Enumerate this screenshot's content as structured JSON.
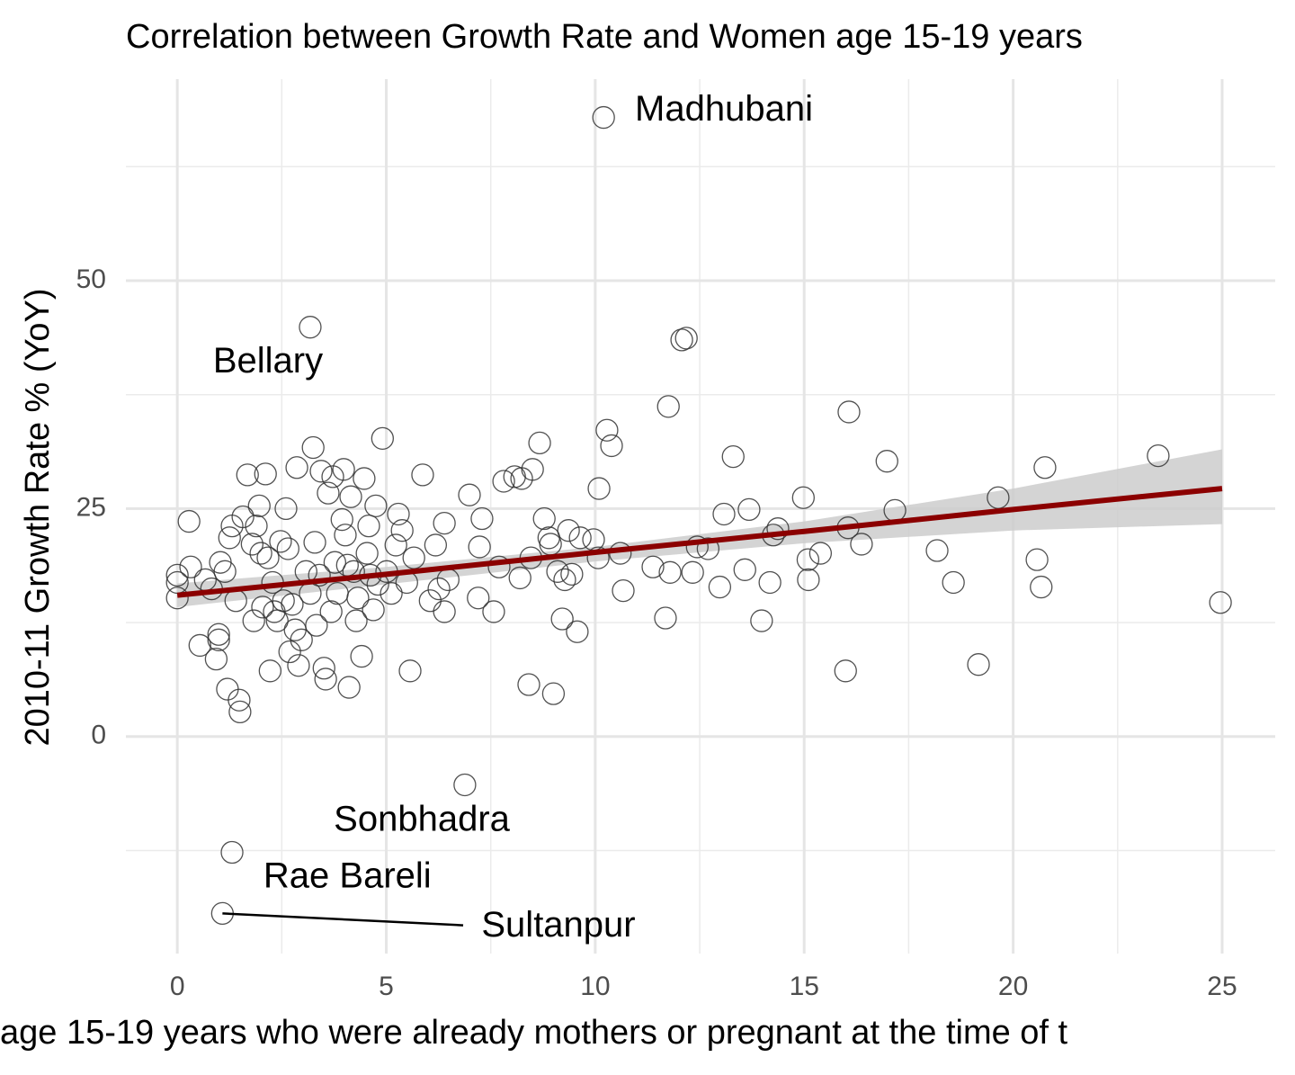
{
  "chart_data": {
    "type": "scatter",
    "title": "Correlation between Growth Rate and Women age 15-19 years",
    "x_label": "age 15-19 years who were already mothers or pregnant at the time of t",
    "y_label": "2010-11 Growth Rate % (YoY)",
    "xlim": [
      -1.23,
      26.27
    ],
    "ylim": [
      -23.8,
      72.1
    ],
    "xticks": [
      0,
      5,
      10,
      15,
      20,
      25
    ],
    "yticks": [
      0,
      25,
      50
    ],
    "x_minor_ticks": [
      2.5,
      7.5,
      12.5,
      17.5,
      22.5
    ],
    "y_minor_ticks": [
      -12.5,
      12.5,
      37.5,
      62.5
    ],
    "grid": true,
    "marker_color": "#333333",
    "x": [
      0,
      0,
      0,
      0.28,
      0.32,
      0.54,
      0.67,
      0.82,
      0.93,
      0.99,
      0.99,
      1.03,
      1.14,
      1.2,
      1.25,
      1.31,
      1.4,
      1.48,
      1.5,
      1.57,
      1.68,
      1.79,
      1.83,
      1.89,
      1.96,
      2.0,
      2.04,
      2.11,
      2.17,
      2.22,
      2.28,
      2.32,
      2.39,
      2.47,
      2.54,
      2.6,
      2.65,
      2.69,
      2.75,
      2.82,
      2.86,
      2.9,
      2.97,
      3.08,
      3.18,
      3.25,
      3.29,
      3.33,
      3.4,
      3.44,
      3.51,
      3.55,
      3.61,
      3.68,
      3.72,
      3.77,
      3.83,
      3.94,
      3.98,
      4.02,
      4.07,
      4.11,
      4.15,
      4.22,
      4.28,
      4.32,
      4.41,
      4.47,
      4.54,
      4.58,
      4.62,
      4.69,
      4.75,
      4.8,
      4.91,
      5.01,
      5.12,
      5.23,
      5.29,
      5.38,
      5.49,
      5.57,
      5.66,
      5.87,
      6.05,
      6.18,
      6.26,
      6.39,
      6.39,
      6.48,
      6.88,
      6.99,
      7.2,
      7.23,
      7.29,
      7.57,
      7.7,
      7.81,
      8.07,
      8.2,
      8.24,
      8.41,
      8.46,
      8.5,
      8.67,
      8.78,
      8.89,
      8.93,
      9.0,
      9.1,
      9.21,
      9.27,
      9.36,
      9.44,
      9.57,
      9.64,
      9.96,
      10.07,
      10.09,
      10.2,
      10.28,
      10.39,
      10.6,
      10.67,
      11.38,
      11.68,
      11.75,
      11.79,
      12.07,
      12.18,
      12.33,
      12.44,
      12.7,
      12.98,
      13.08,
      13.3,
      13.58,
      13.68,
      13.98,
      14.18,
      14.26,
      14.37,
      14.98,
      15.09,
      15.1,
      15.39,
      15.99,
      16.05,
      16.07,
      16.37,
      16.98,
      17.17,
      18.18,
      18.57,
      19.17,
      19.64,
      20.57,
      20.67,
      20.76,
      23.47,
      24.96,
      3.18,
      1.31,
      1.08
    ],
    "values": [
      17.7,
      15.2,
      16.9,
      23.6,
      18.6,
      10.0,
      17.2,
      16.2,
      8.5,
      11.2,
      10.6,
      19.1,
      18.1,
      5.2,
      21.8,
      23.1,
      14.9,
      4.0,
      2.7,
      24.1,
      28.7,
      21.1,
      12.7,
      23.1,
      25.3,
      20.1,
      14.2,
      28.8,
      19.6,
      7.2,
      16.9,
      13.7,
      12.7,
      21.4,
      14.9,
      25.0,
      20.6,
      9.3,
      14.5,
      11.7,
      29.5,
      7.8,
      10.6,
      18.1,
      15.7,
      31.7,
      21.3,
      12.2,
      17.7,
      29.1,
      7.5,
      6.3,
      26.7,
      13.7,
      28.5,
      19.1,
      15.7,
      23.8,
      29.3,
      22.1,
      18.8,
      5.4,
      26.3,
      18.1,
      12.7,
      15.2,
      8.8,
      28.3,
      20.1,
      23.1,
      17.7,
      13.9,
      25.3,
      16.7,
      32.7,
      18.1,
      15.7,
      21.0,
      24.4,
      22.6,
      16.9,
      7.2,
      19.6,
      28.7,
      14.9,
      21.0,
      16.2,
      23.4,
      13.7,
      17.2,
      -5.3,
      26.5,
      15.2,
      20.8,
      23.9,
      13.7,
      18.6,
      28.0,
      28.5,
      17.4,
      28.3,
      5.7,
      19.6,
      29.3,
      32.2,
      23.9,
      21.8,
      21.1,
      4.7,
      18.1,
      12.9,
      17.2,
      22.6,
      17.8,
      11.5,
      21.8,
      21.6,
      19.6,
      27.2,
      67.9,
      33.6,
      31.9,
      20.1,
      16.0,
      18.6,
      13.0,
      36.2,
      18.0,
      43.5,
      43.7,
      18.0,
      20.8,
      20.6,
      16.4,
      24.4,
      30.7,
      18.3,
      24.9,
      12.7,
      16.9,
      22.1,
      22.8,
      26.2,
      19.4,
      17.2,
      20.1,
      7.2,
      22.9,
      35.6,
      21.1,
      30.2,
      24.8,
      20.4,
      16.9,
      7.9,
      26.2,
      19.4,
      16.4,
      29.5,
      30.8,
      14.7,
      44.9,
      -12.7,
      -19.4
    ],
    "fit": {
      "x": [
        0,
        5,
        10,
        15,
        20,
        25
      ],
      "values": [
        15.5,
        17.8,
        20.2,
        22.5,
        24.9,
        27.2
      ],
      "lower": [
        14.2,
        16.7,
        19.2,
        21.2,
        22.6,
        23.3
      ],
      "upper": [
        16.8,
        18.6,
        20.8,
        23.6,
        27.2,
        31.5
      ],
      "color": "#8b0000",
      "band_color": "#cccccc"
    },
    "annotations": [
      {
        "text": "Madhubani",
        "x": 13.08,
        "y": 68.6
      },
      {
        "text": "Bellary",
        "x": 2.17,
        "y": 41.0
      },
      {
        "text": "Sonbhadra",
        "x": 5.85,
        "y": -9.3
      },
      {
        "text": "Rae Bareli",
        "x": 4.07,
        "y": -15.5
      },
      {
        "text": "Sultanpur",
        "x": 9.12,
        "y": -20.9,
        "leader_from": [
          1.08,
          -19.4
        ],
        "leader_to": [
          6.84,
          -20.7
        ]
      }
    ]
  }
}
